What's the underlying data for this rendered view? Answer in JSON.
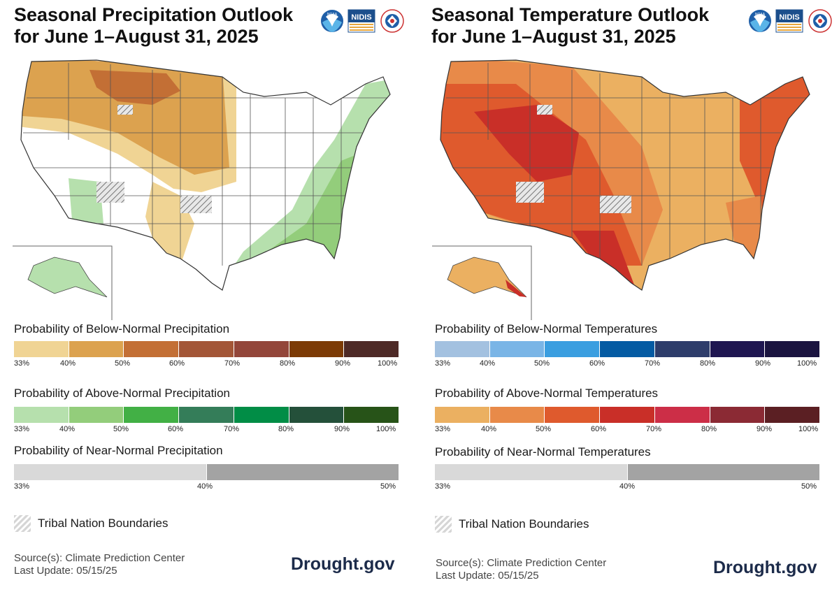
{
  "precip": {
    "title_line1": "Seasonal Precipitation Outlook",
    "title_line2": "for June 1–August 31, 2025",
    "below": {
      "title": "Probability of Below-Normal Precipitation",
      "colors": [
        "#f0d494",
        "#dca24f",
        "#c36f35",
        "#a35637",
        "#93463a",
        "#7c3b06",
        "#4e2a27"
      ],
      "ticks": [
        "33%",
        "40%",
        "50%",
        "60%",
        "70%",
        "80%",
        "90%",
        "100%"
      ]
    },
    "above": {
      "title": "Probability of Above-Normal Precipitation",
      "colors": [
        "#b6e0ad",
        "#93cd7b",
        "#42b045",
        "#347d59",
        "#018d46",
        "#24503a",
        "#275318"
      ],
      "ticks": [
        "33%",
        "40%",
        "50%",
        "60%",
        "70%",
        "80%",
        "90%",
        "100%"
      ]
    },
    "near": {
      "title": "Probability of Near-Normal Precipitation",
      "colors": [
        "#d9d9d9",
        "#a3a3a3"
      ],
      "ticks": [
        "33%",
        "40%",
        "50%"
      ]
    },
    "tribal_label": "Tribal Nation Boundaries",
    "source_line1": "Source(s): Climate Prediction Center",
    "source_line2": "Last Update: 05/15/25",
    "brand": "Drought.gov",
    "map_colors": {
      "dry_light": "#f0d494",
      "dry_mid": "#dca24f",
      "dry_dark": "#c36f35",
      "wet_light": "#b6e0ad",
      "wet_mid": "#93cd7b"
    }
  },
  "temp": {
    "title_line1": "Seasonal Temperature Outlook",
    "title_line2": "for June 1–August 31, 2025",
    "below": {
      "title": "Probability of Below-Normal Temperatures",
      "colors": [
        "#a3c1e0",
        "#7ab5e6",
        "#3a9ee0",
        "#055ba3",
        "#2e3d6b",
        "#1f1651",
        "#1b1440"
      ],
      "ticks": [
        "33%",
        "40%",
        "50%",
        "60%",
        "70%",
        "80%",
        "90%",
        "100%"
      ]
    },
    "above": {
      "title": "Probability of Above-Normal Temperatures",
      "colors": [
        "#ebb061",
        "#e88a49",
        "#df5a2d",
        "#c92f28",
        "#cc2e47",
        "#8b2a34",
        "#5b1f23"
      ],
      "ticks": [
        "33%",
        "40%",
        "50%",
        "60%",
        "70%",
        "80%",
        "90%",
        "100%"
      ]
    },
    "near": {
      "title": "Probability of Near-Normal Temperatures",
      "colors": [
        "#d9d9d9",
        "#a3a3a3"
      ],
      "ticks": [
        "33%",
        "40%",
        "50%"
      ]
    },
    "tribal_label": "Tribal Nation Boundaries",
    "source_line1": "Source(s): Climate Prediction Center",
    "source_line2": "Last Update: 05/15/25",
    "brand": "Drought.gov",
    "map_colors": {
      "warm1": "#ebb061",
      "warm2": "#e88a49",
      "warm3": "#df5a2d",
      "warm4": "#c92f28"
    }
  },
  "logos": {
    "noaa_text": "NOAA",
    "nidis_text": "NIDIS",
    "icons": [
      "noaa-logo",
      "nidis-logo",
      "national-weather-service-logo"
    ]
  }
}
